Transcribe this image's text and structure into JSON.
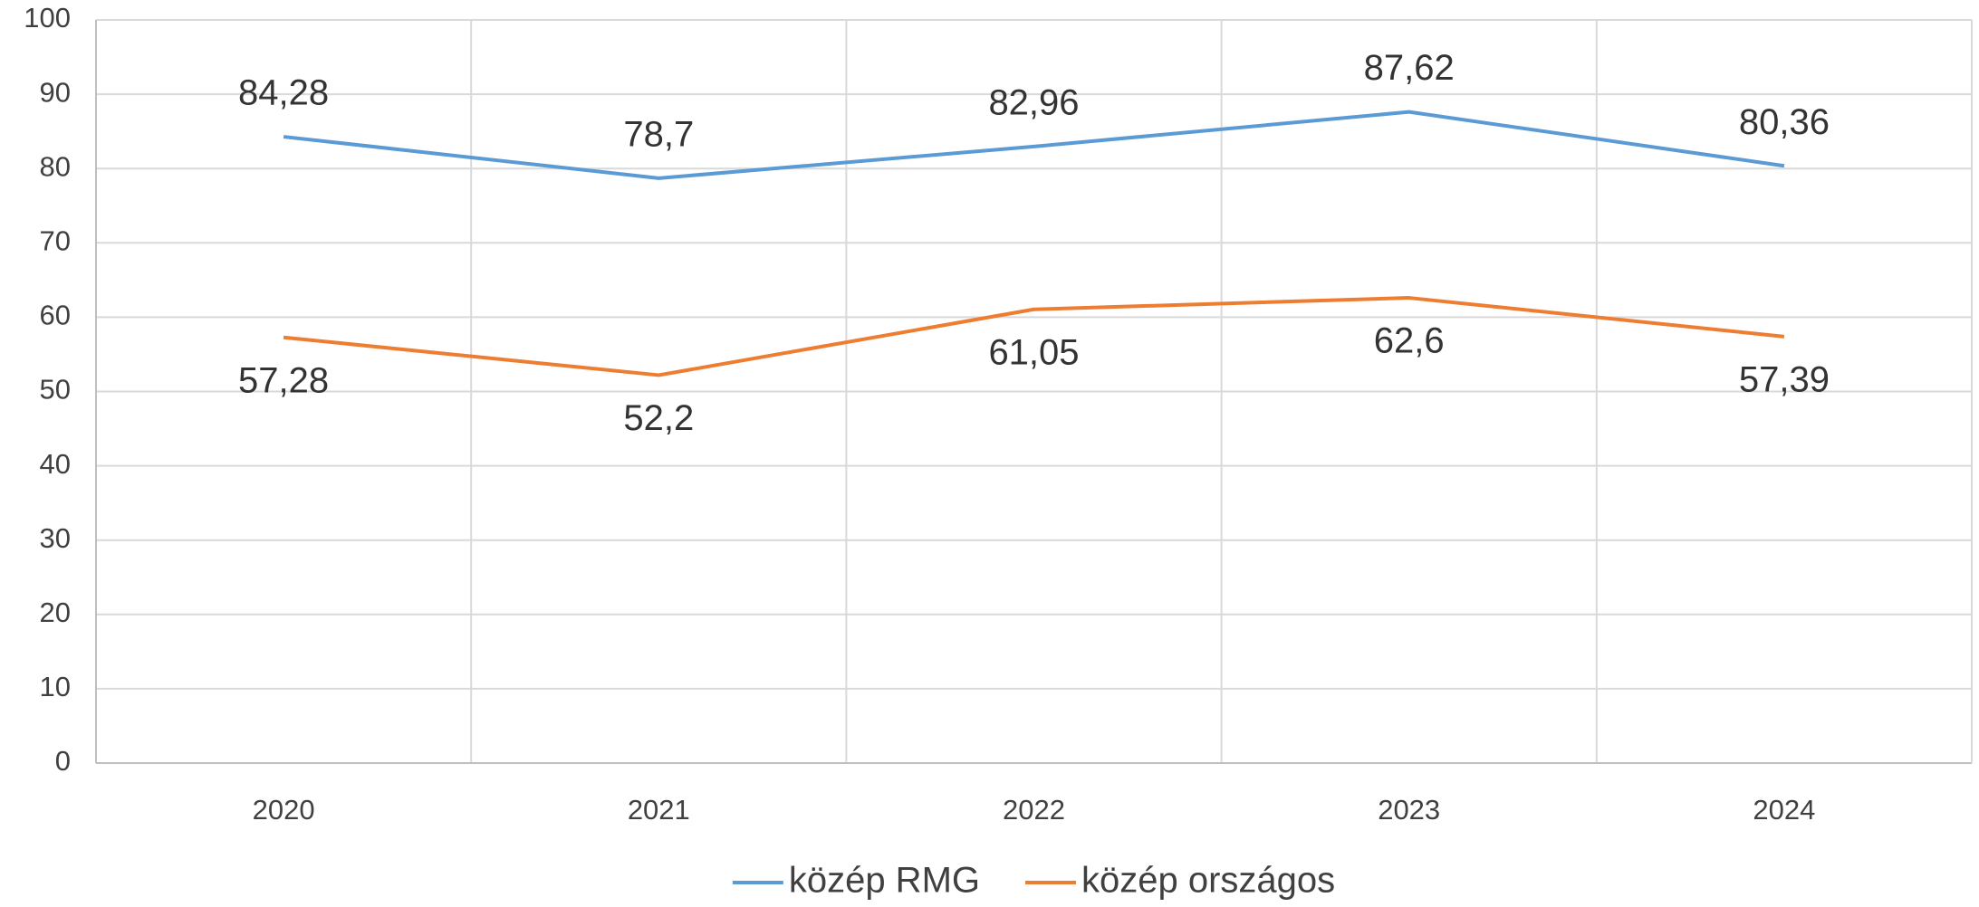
{
  "chart_data": {
    "type": "line",
    "categories": [
      "2020",
      "2021",
      "2022",
      "2023",
      "2024"
    ],
    "series": [
      {
        "name": "közép RMG",
        "color": "#5b9bd5",
        "values": [
          84.28,
          78.7,
          82.96,
          87.62,
          80.36
        ],
        "value_labels": [
          "84,28",
          "78,7",
          "82,96",
          "87,62",
          "80,36"
        ]
      },
      {
        "name": "közép országos",
        "color": "#ed7d31",
        "values": [
          57.28,
          52.2,
          61.05,
          62.6,
          57.39
        ],
        "value_labels": [
          "57,28",
          "52,2",
          "61,05",
          "62,6",
          "57,39"
        ]
      }
    ],
    "ylim": [
      0,
      100
    ],
    "yticks": [
      0,
      10,
      20,
      30,
      40,
      50,
      60,
      70,
      80,
      90,
      100
    ],
    "grid": true,
    "legend": "bottom"
  }
}
